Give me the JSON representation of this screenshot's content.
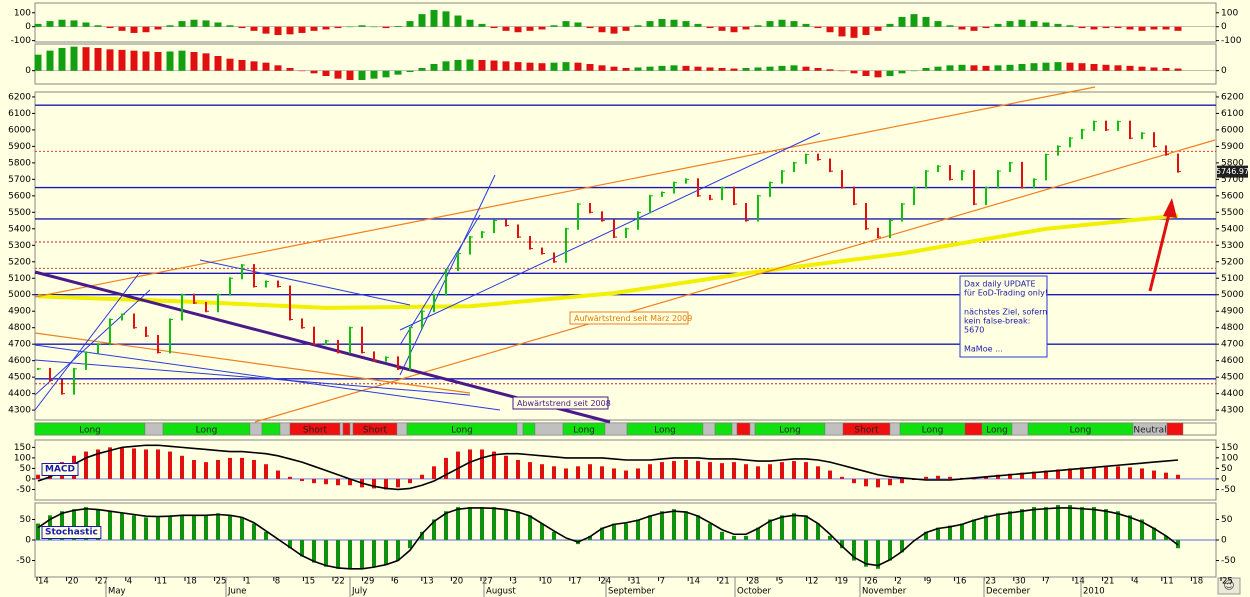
{
  "chart_data": [
    {
      "type": "bar",
      "color_rule": "sign",
      "color_positive": "#12a012",
      "color_negative": "#e01010",
      "ylim": [
        -110,
        170
      ],
      "yticks": [
        100,
        0,
        -100
      ],
      "values": [
        20,
        40,
        50,
        45,
        30,
        10,
        -10,
        -30,
        -45,
        -40,
        -20,
        10,
        40,
        50,
        45,
        30,
        10,
        -10,
        -30,
        -50,
        -60,
        -55,
        -45,
        -30,
        -20,
        -10,
        0,
        10,
        0,
        -10,
        5,
        40,
        90,
        120,
        110,
        80,
        50,
        20,
        -10,
        -30,
        -40,
        -30,
        -20,
        10,
        40,
        30,
        -10,
        -40,
        -50,
        -30,
        10,
        40,
        55,
        50,
        40,
        20,
        -10,
        -30,
        -40,
        -20,
        10,
        40,
        50,
        40,
        20,
        -10,
        -40,
        -70,
        -80,
        -60,
        -30,
        20,
        70,
        90,
        70,
        40,
        10,
        -20,
        -30,
        -10,
        20,
        40,
        50,
        40,
        30,
        20,
        10,
        -10,
        -20,
        -10,
        -10,
        -20,
        -30,
        -20,
        -20,
        -30
      ]
    },
    {
      "type": "bar",
      "color_rule": "slope",
      "color_positive": "#12a012",
      "color_negative": "#e01010",
      "ylim": [
        -50,
        100
      ],
      "yticks": [
        0
      ],
      "values": [
        60,
        75,
        85,
        90,
        88,
        85,
        80,
        78,
        75,
        72,
        70,
        72,
        75,
        70,
        65,
        55,
        45,
        40,
        35,
        30,
        20,
        10,
        0,
        -10,
        -20,
        -30,
        -35,
        -35,
        -30,
        -25,
        -15,
        -5,
        10,
        25,
        35,
        40,
        42,
        40,
        38,
        35,
        32,
        30,
        28,
        30,
        32,
        30,
        25,
        20,
        15,
        10,
        12,
        15,
        18,
        20,
        18,
        15,
        12,
        10,
        8,
        10,
        12,
        15,
        18,
        20,
        15,
        10,
        5,
        0,
        -10,
        -20,
        -25,
        -20,
        -10,
        0,
        10,
        15,
        20,
        22,
        20,
        18,
        20,
        22,
        25,
        28,
        30,
        32,
        30,
        28,
        25,
        22,
        20,
        18,
        15,
        12,
        10,
        8
      ]
    },
    {
      "type": "price",
      "color_up": "#10c010",
      "color_down": "#e01010",
      "ylim": [
        4240,
        6230
      ],
      "yticks": [
        6200,
        6100,
        6000,
        5900,
        5800,
        5700,
        5600,
        5500,
        5400,
        5300,
        5200,
        5100,
        5000,
        4900,
        4800,
        4700,
        4600,
        4500,
        4400,
        4300
      ],
      "close": [
        4550,
        4480,
        4400,
        4550,
        4650,
        4700,
        4850,
        4880,
        4800,
        4750,
        4650,
        4850,
        5000,
        4950,
        4900,
        5000,
        5100,
        5180,
        5050,
        5080,
        5050,
        4850,
        4800,
        4700,
        4720,
        4650,
        4800,
        4650,
        4600,
        4620,
        4550,
        4800,
        4900,
        5000,
        5150,
        5250,
        5350,
        5380,
        5450,
        5420,
        5350,
        5280,
        5250,
        5200,
        5400,
        5550,
        5500,
        5450,
        5350,
        5400,
        5500,
        5600,
        5620,
        5680,
        5700,
        5600,
        5580,
        5650,
        5550,
        5450,
        5600,
        5680,
        5750,
        5800,
        5850,
        5820,
        5750,
        5650,
        5550,
        5400,
        5350,
        5450,
        5550,
        5650,
        5750,
        5780,
        5700,
        5750,
        5550,
        5650,
        5750,
        5800,
        5650,
        5700,
        5850,
        5900,
        5950,
        6000,
        6050,
        6000,
        6050,
        5950,
        5980,
        5900,
        5850,
        5746.97
      ],
      "last_price": 5746.97,
      "ma": {
        "x": [
          0,
          12,
          24,
          36,
          48,
          60,
          72,
          84,
          95
        ],
        "values": [
          4990,
          4960,
          4920,
          4930,
          5010,
          5140,
          5250,
          5400,
          5480
        ],
        "color": "#f0f000"
      },
      "levels": [
        {
          "value": 6150,
          "color": "#1a1ab0",
          "style": "solid"
        },
        {
          "value": 5870,
          "color": "#d02020",
          "style": "dashed"
        },
        {
          "value": 5650,
          "color": "#1a1ab0",
          "style": "solid"
        },
        {
          "value": 5460,
          "color": "#1a1ab0",
          "style": "solid"
        },
        {
          "value": 5320,
          "color": "#d02020",
          "style": "dashed"
        },
        {
          "value": 5160,
          "color": "#d02020",
          "style": "dashed"
        },
        {
          "value": 5130,
          "color": "#1a1ab0",
          "style": "solid"
        },
        {
          "value": 5000,
          "color": "#1a1ab0",
          "style": "solid"
        },
        {
          "value": 4700,
          "color": "#1a1ab0",
          "style": "solid"
        },
        {
          "value": 4490,
          "color": "#1a1ab0",
          "style": "solid"
        },
        {
          "value": 4460,
          "color": "#d02020",
          "style": "dashed"
        }
      ],
      "annotations": [
        "Aufwärtstrend seit März 2009",
        "Abwärtstrend seit 2008"
      ],
      "note": [
        "Dax daily UPDATE",
        "für EoD-Trading only!",
        "nächstes Ziel, sofern",
        "kein false-break:",
        "5670",
        "MaMoe ..."
      ]
    },
    {
      "type": "signal",
      "segments": [
        {
          "label": "Long",
          "color": "#10e010"
        },
        {
          "label": null,
          "color": "#c0c0c0"
        },
        {
          "label": "Long",
          "color": "#10e010"
        },
        {
          "label": null,
          "color": "#c0c0c0"
        },
        {
          "label": null,
          "color": "#10e010"
        },
        {
          "label": null,
          "color": "#c0c0c0"
        },
        {
          "label": "Short",
          "color": "#f01010"
        },
        {
          "label": null,
          "color": "#c0c0c0"
        },
        {
          "label": null,
          "color": "#f01010"
        },
        {
          "label": null,
          "color": "#c0c0c0"
        },
        {
          "label": "Short",
          "color": "#f01010"
        },
        {
          "label": null,
          "color": "#c0c0c0"
        },
        {
          "label": "Long",
          "color": "#10e010"
        },
        {
          "label": null,
          "color": "#c0c0c0"
        },
        {
          "label": null,
          "color": "#10e010"
        },
        {
          "label": null,
          "color": "#c0c0c0"
        },
        {
          "label": "Long",
          "color": "#10e010"
        },
        {
          "label": null,
          "color": "#c0c0c0"
        },
        {
          "label": "Long",
          "color": "#10e010"
        },
        {
          "label": null,
          "color": "#c0c0c0"
        },
        {
          "label": null,
          "color": "#10e010"
        },
        {
          "label": null,
          "color": "#c0c0c0"
        },
        {
          "label": null,
          "color": "#f01010"
        },
        {
          "label": null,
          "color": "#c0c0c0"
        },
        {
          "label": "Long",
          "color": "#10e010"
        },
        {
          "label": null,
          "color": "#c0c0c0"
        },
        {
          "label": "Short",
          "color": "#f01010"
        },
        {
          "label": null,
          "color": "#c0c0c0"
        },
        {
          "label": "Long",
          "color": "#10e010"
        },
        {
          "label": null,
          "color": "#f01010"
        },
        {
          "label": "Long",
          "color": "#10e010"
        },
        {
          "label": null,
          "color": "#c0c0c0"
        },
        {
          "label": "Long",
          "color": "#10e010"
        },
        {
          "label": "Neutral",
          "color": "#c0c0c0"
        },
        {
          "label": null,
          "color": "#f01010"
        }
      ]
    },
    {
      "type": "macd",
      "label": "MACD",
      "hist_color": "#e01010",
      "line_color": "#000000",
      "ylim": [
        -100,
        185
      ],
      "yticks": [
        150,
        100,
        50,
        0,
        -50
      ],
      "histogram": [
        20,
        50,
        80,
        110,
        130,
        140,
        150,
        150,
        145,
        140,
        140,
        130,
        110,
        90,
        80,
        90,
        100,
        100,
        90,
        70,
        40,
        10,
        -10,
        -20,
        -25,
        -30,
        -30,
        -40,
        -45,
        -50,
        -40,
        -20,
        20,
        60,
        100,
        130,
        140,
        140,
        130,
        110,
        90,
        80,
        70,
        60,
        50,
        60,
        70,
        60,
        50,
        40,
        50,
        70,
        80,
        85,
        90,
        85,
        80,
        75,
        80,
        70,
        60,
        70,
        80,
        85,
        80,
        60,
        40,
        10,
        -20,
        -35,
        -40,
        -30,
        -20,
        -5,
        10,
        15,
        10,
        5,
        0,
        10,
        20,
        25,
        30,
        35,
        40,
        45,
        50,
        55,
        55,
        60,
        60,
        55,
        50,
        40,
        30,
        20
      ],
      "line": [
        -10,
        10,
        40,
        70,
        100,
        120,
        135,
        150,
        155,
        160,
        160,
        155,
        150,
        145,
        140,
        135,
        130,
        130,
        125,
        120,
        110,
        95,
        80,
        60,
        40,
        20,
        0,
        -20,
        -35,
        -45,
        -50,
        -45,
        -30,
        -10,
        20,
        50,
        80,
        100,
        115,
        120,
        120,
        115,
        110,
        105,
        100,
        100,
        100,
        100,
        95,
        90,
        90,
        90,
        95,
        100,
        100,
        100,
        95,
        95,
        95,
        90,
        85,
        85,
        90,
        95,
        95,
        90,
        80,
        65,
        50,
        35,
        20,
        10,
        5,
        0,
        -5,
        -5,
        -5,
        0,
        5,
        10,
        15,
        20,
        25,
        30,
        35,
        40,
        45,
        50,
        55,
        60,
        65,
        70,
        75,
        80,
        85,
        90
      ]
    },
    {
      "type": "stochastic",
      "label": "Stochastic",
      "hist_color": "#109010",
      "line_color": "#000000",
      "ylim": [
        -90,
        90
      ],
      "yticks": [
        50,
        0,
        -50
      ],
      "histogram": [
        40,
        60,
        70,
        75,
        80,
        75,
        70,
        65,
        60,
        55,
        55,
        60,
        60,
        60,
        60,
        65,
        60,
        55,
        40,
        20,
        0,
        -20,
        -40,
        -55,
        -65,
        -70,
        -70,
        -70,
        -65,
        -60,
        -50,
        -20,
        20,
        50,
        70,
        80,
        80,
        80,
        80,
        75,
        70,
        60,
        40,
        20,
        0,
        -10,
        10,
        30,
        40,
        40,
        50,
        60,
        70,
        75,
        70,
        60,
        40,
        20,
        10,
        10,
        30,
        50,
        60,
        65,
        60,
        40,
        10,
        -20,
        -50,
        -65,
        -70,
        -50,
        -30,
        0,
        20,
        30,
        35,
        40,
        50,
        60,
        65,
        70,
        75,
        80,
        80,
        85,
        85,
        80,
        80,
        75,
        70,
        60,
        50,
        30,
        10,
        -20
      ],
      "line": [
        30,
        50,
        65,
        72,
        76,
        74,
        70,
        66,
        62,
        58,
        57,
        58,
        60,
        60,
        60,
        62,
        60,
        55,
        42,
        22,
        2,
        -18,
        -38,
        -52,
        -62,
        -68,
        -70,
        -70,
        -66,
        -60,
        -50,
        -25,
        15,
        45,
        65,
        75,
        78,
        78,
        77,
        74,
        68,
        58,
        40,
        22,
        5,
        -5,
        8,
        28,
        38,
        42,
        48,
        58,
        66,
        70,
        68,
        58,
        42,
        25,
        14,
        14,
        28,
        46,
        56,
        60,
        58,
        40,
        14,
        -15,
        -42,
        -58,
        -62,
        -48,
        -28,
        -2,
        18,
        28,
        32,
        38,
        48,
        56,
        62,
        66,
        70,
        74,
        76,
        78,
        78,
        76,
        74,
        70,
        64,
        55,
        44,
        28,
        10,
        -12
      ]
    }
  ],
  "x_axis": {
    "days": [
      "14",
      "20",
      "27",
      "4",
      "11",
      "18",
      "25",
      "1",
      "8",
      "15",
      "22",
      "29",
      "6",
      "13",
      "20",
      "27",
      "3",
      "10",
      "17",
      "24",
      "31",
      "7",
      "14",
      "21",
      "28",
      "5",
      "12",
      "19",
      "26",
      "2",
      "9",
      "16",
      "23",
      "30",
      "7",
      "14",
      "21",
      "4",
      "11",
      "18",
      "25"
    ],
    "months": [
      "May",
      "June",
      "July",
      "August",
      "September",
      "October",
      "November",
      "December",
      "2010"
    ]
  }
}
